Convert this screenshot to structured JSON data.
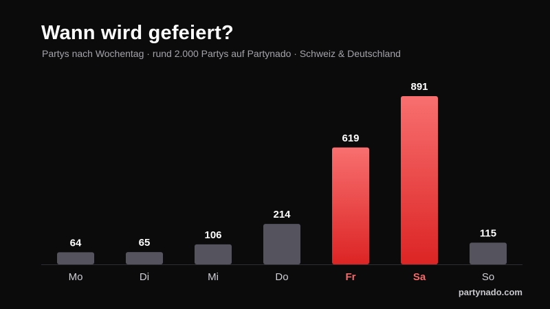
{
  "title": "Wann wird gefeiert?",
  "subtitle": "Partys nach Wochentag · rund 2.000 Partys auf Partynado · Schweiz & Deutschland",
  "brand": "partynado.com",
  "colors": {
    "background": "#0b0b0c",
    "bar_default": "#55545e",
    "bar_highlight_top": "#f86f6f",
    "bar_highlight_bottom": "#dc2424",
    "label_highlight": "#f46a6a",
    "label_default": "#cfcfd4",
    "value_text": "#ffffff",
    "axis_line": "#2f2f33"
  },
  "chart_data": {
    "type": "bar",
    "categories": [
      "Mo",
      "Di",
      "Mi",
      "Do",
      "Fr",
      "Sa",
      "So"
    ],
    "values": [
      64,
      65,
      106,
      214,
      619,
      891,
      115
    ],
    "highlight": [
      "Fr",
      "Sa"
    ],
    "title": "Wann wird gefeiert?",
    "xlabel": "",
    "ylabel": "",
    "ylim": [
      0,
      891
    ],
    "grid": false,
    "legend": "none",
    "data_labels": true
  }
}
